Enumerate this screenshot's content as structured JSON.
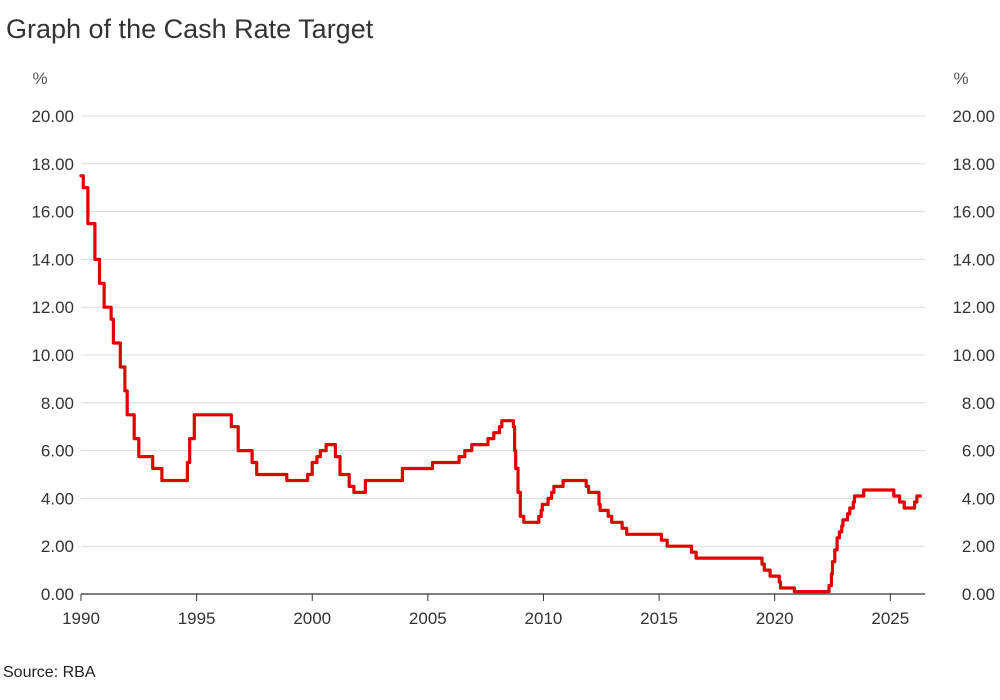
{
  "title": "Graph of the Cash Rate Target",
  "source": "Source: RBA",
  "colors": {
    "series": "#e00000",
    "grid": "#dcdcdc",
    "axis": "#333333"
  },
  "chart_data": {
    "type": "line",
    "title": "Graph of the Cash Rate Target",
    "unit_left": "%",
    "unit_right": "%",
    "ylim": [
      0,
      20
    ],
    "xlim": [
      1990,
      2026.5
    ],
    "y_ticks": [
      "0.00",
      "2.00",
      "4.00",
      "6.00",
      "8.00",
      "10.00",
      "12.00",
      "14.00",
      "16.00",
      "18.00",
      "20.00"
    ],
    "x_ticks": [
      "1990",
      "1995",
      "2000",
      "2005",
      "2010",
      "2015",
      "2020",
      "2025"
    ],
    "grid": true,
    "legend": "none",
    "series": [
      {
        "color": "#e00000",
        "step": true,
        "points": [
          [
            1990.0,
            17.5
          ],
          [
            1990.1,
            17.0
          ],
          [
            1990.3,
            15.5
          ],
          [
            1990.6,
            14.0
          ],
          [
            1990.8,
            13.0
          ],
          [
            1991.0,
            12.0
          ],
          [
            1991.3,
            11.5
          ],
          [
            1991.4,
            10.5
          ],
          [
            1991.7,
            9.5
          ],
          [
            1991.9,
            8.5
          ],
          [
            1992.0,
            7.5
          ],
          [
            1992.3,
            6.5
          ],
          [
            1992.5,
            5.75
          ],
          [
            1993.1,
            5.25
          ],
          [
            1993.5,
            4.75
          ],
          [
            1994.6,
            5.5
          ],
          [
            1994.7,
            6.5
          ],
          [
            1994.9,
            7.5
          ],
          [
            1996.5,
            7.0
          ],
          [
            1996.8,
            6.0
          ],
          [
            1997.4,
            5.5
          ],
          [
            1997.6,
            5.0
          ],
          [
            1998.9,
            4.75
          ],
          [
            1999.8,
            5.0
          ],
          [
            2000.0,
            5.5
          ],
          [
            2000.2,
            5.75
          ],
          [
            2000.35,
            6.0
          ],
          [
            2000.6,
            6.25
          ],
          [
            2001.0,
            5.75
          ],
          [
            2001.2,
            5.0
          ],
          [
            2001.6,
            4.5
          ],
          [
            2001.8,
            4.25
          ],
          [
            2002.3,
            4.75
          ],
          [
            2003.9,
            5.25
          ],
          [
            2005.2,
            5.5
          ],
          [
            2006.35,
            5.75
          ],
          [
            2006.6,
            6.0
          ],
          [
            2006.9,
            6.25
          ],
          [
            2007.6,
            6.5
          ],
          [
            2007.85,
            6.75
          ],
          [
            2008.1,
            7.0
          ],
          [
            2008.2,
            7.25
          ],
          [
            2008.7,
            7.0
          ],
          [
            2008.75,
            6.0
          ],
          [
            2008.8,
            5.25
          ],
          [
            2008.9,
            4.25
          ],
          [
            2009.0,
            3.25
          ],
          [
            2009.15,
            3.0
          ],
          [
            2009.8,
            3.25
          ],
          [
            2009.9,
            3.5
          ],
          [
            2009.95,
            3.75
          ],
          [
            2010.2,
            4.0
          ],
          [
            2010.35,
            4.25
          ],
          [
            2010.45,
            4.5
          ],
          [
            2010.85,
            4.75
          ],
          [
            2011.85,
            4.5
          ],
          [
            2011.95,
            4.25
          ],
          [
            2012.4,
            3.75
          ],
          [
            2012.45,
            3.5
          ],
          [
            2012.8,
            3.25
          ],
          [
            2012.95,
            3.0
          ],
          [
            2013.4,
            2.75
          ],
          [
            2013.6,
            2.5
          ],
          [
            2015.1,
            2.25
          ],
          [
            2015.35,
            2.0
          ],
          [
            2016.4,
            1.75
          ],
          [
            2016.6,
            1.5
          ],
          [
            2019.45,
            1.25
          ],
          [
            2019.55,
            1.0
          ],
          [
            2019.8,
            0.75
          ],
          [
            2020.2,
            0.5
          ],
          [
            2020.25,
            0.25
          ],
          [
            2020.85,
            0.1
          ],
          [
            2022.35,
            0.35
          ],
          [
            2022.45,
            0.85
          ],
          [
            2022.5,
            1.35
          ],
          [
            2022.6,
            1.85
          ],
          [
            2022.7,
            2.35
          ],
          [
            2022.8,
            2.6
          ],
          [
            2022.9,
            2.85
          ],
          [
            2022.95,
            3.1
          ],
          [
            2023.15,
            3.35
          ],
          [
            2023.25,
            3.6
          ],
          [
            2023.4,
            3.85
          ],
          [
            2023.45,
            4.1
          ],
          [
            2023.85,
            4.35
          ],
          [
            2025.15,
            4.1
          ],
          [
            2025.4,
            3.85
          ],
          [
            2025.6,
            3.6
          ],
          [
            2026.05,
            3.85
          ],
          [
            2026.15,
            4.1
          ],
          [
            2026.3,
            4.1
          ]
        ]
      }
    ]
  }
}
